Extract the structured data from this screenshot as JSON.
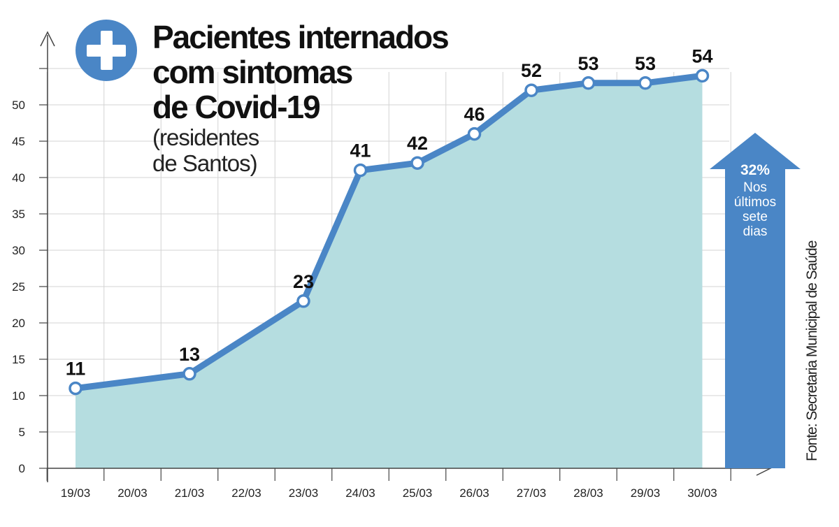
{
  "colors": {
    "line": "#4a86c6",
    "area": "#b5dde0",
    "grid": "#d3d3d3",
    "axis": "#444444",
    "icon": "#4a86c6",
    "arrow": "#4a86c6"
  },
  "title": {
    "line1": "Pacientes internados",
    "line2": "com sintomas",
    "line3": "de Covid-19",
    "sub1": "(residentes",
    "sub2": "de Santos)"
  },
  "icon": "plus-cross-icon",
  "source": "Fonte: Secretaria Municipal de Saúde",
  "highlight": {
    "percent": "32%",
    "lines": [
      "Nos",
      "últimos",
      "sete",
      "dias"
    ]
  },
  "chart_data": {
    "type": "area",
    "categories": [
      "19/03",
      "20/03",
      "21/03",
      "22/03",
      "23/03",
      "24/03",
      "25/03",
      "26/03",
      "27/03",
      "28/03",
      "29/03",
      "30/03"
    ],
    "points": [
      {
        "x": "19/03",
        "y": 11
      },
      {
        "x": "21/03",
        "y": 13
      },
      {
        "x": "23/03",
        "y": 23
      },
      {
        "x": "24/03",
        "y": 41
      },
      {
        "x": "25/03",
        "y": 42
      },
      {
        "x": "26/03",
        "y": 46
      },
      {
        "x": "27/03",
        "y": 52
      },
      {
        "x": "28/03",
        "y": 53
      },
      {
        "x": "29/03",
        "y": 53
      },
      {
        "x": "30/03",
        "y": 54
      }
    ],
    "yticks": [
      0,
      5,
      10,
      15,
      20,
      25,
      30,
      35,
      40,
      45,
      50
    ],
    "ylim": [
      0,
      55
    ],
    "grid": true
  }
}
